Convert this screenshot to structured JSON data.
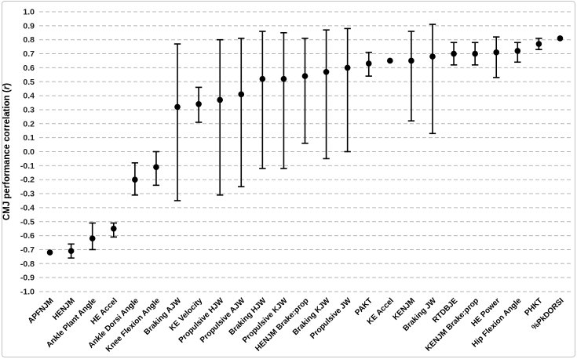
{
  "figure": {
    "background": "#ffffff",
    "border_color": "#c3c3c3"
  },
  "chart_data": {
    "type": "scatter",
    "subtype": "points-with-error-bars",
    "title": "",
    "xlabel": "",
    "ylabel_prefix": "CMJ performance correlation (",
    "ylabel_italic": "r",
    "ylabel_suffix": ")",
    "ylim": [
      -1.0,
      1.0
    ],
    "ytick_step": 0.1,
    "ytick_labels": [
      "1.0",
      "0.9",
      "0.8",
      "0.7",
      "0.6",
      "0.5",
      "0.4",
      "0.3",
      "0.2",
      "0.1",
      "0.0",
      "-0.1",
      "-0.2",
      "-0.3",
      "-0.4",
      "-0.5",
      "-0.6",
      "-0.7",
      "-0.8",
      "-0.9",
      "-1.0"
    ],
    "grid": "horizontal-dashed",
    "legend": "none",
    "marker_color": "#000000",
    "error_bar_color": "#000000",
    "gridline_color": "#b5b5b5",
    "tick_label_color": "#1f1f1f",
    "category_label_color": "#000000",
    "categories": [
      "APFNJM",
      "HENJM",
      "Ankle Plant Angle",
      "HE Accel",
      "Ankle Dorsi Angle",
      "Knee Flexion Angle",
      "Braking AJW",
      "KE Velocity",
      "Propulsive HJW",
      "Propulsive AJW",
      "Braking HJW",
      "Propulsive KJW",
      "HENJM Brake:prop",
      "Braking KJW",
      "Propulsive JW",
      "PAKT",
      "KE Accel",
      "KENJM",
      "Braking JW",
      "RTDBJE",
      "KENJM Brake:prop",
      "HE Power",
      "Hip Flexion Angle",
      "PHKT",
      "%PkDORSI"
    ],
    "series": [
      {
        "name": "CMJ performance correlation",
        "values": [
          -0.72,
          -0.71,
          -0.62,
          -0.55,
          -0.2,
          -0.11,
          0.32,
          0.34,
          0.37,
          0.41,
          0.52,
          0.52,
          0.54,
          0.57,
          0.6,
          0.63,
          0.65,
          0.65,
          0.68,
          0.7,
          0.7,
          0.71,
          0.72,
          0.77,
          0.81
        ],
        "err_high": [
          null,
          -0.66,
          -0.51,
          -0.51,
          -0.08,
          0.0,
          0.77,
          0.46,
          0.8,
          0.81,
          0.86,
          0.85,
          0.81,
          0.87,
          0.88,
          0.71,
          null,
          0.86,
          0.91,
          0.78,
          0.78,
          0.82,
          0.78,
          0.81,
          null
        ],
        "err_low": [
          null,
          -0.76,
          -0.7,
          -0.61,
          -0.31,
          -0.24,
          -0.35,
          0.21,
          -0.31,
          -0.25,
          -0.12,
          -0.12,
          0.06,
          -0.05,
          0.0,
          0.54,
          null,
          0.22,
          0.13,
          0.62,
          0.62,
          0.53,
          0.64,
          0.73,
          null
        ]
      }
    ]
  }
}
